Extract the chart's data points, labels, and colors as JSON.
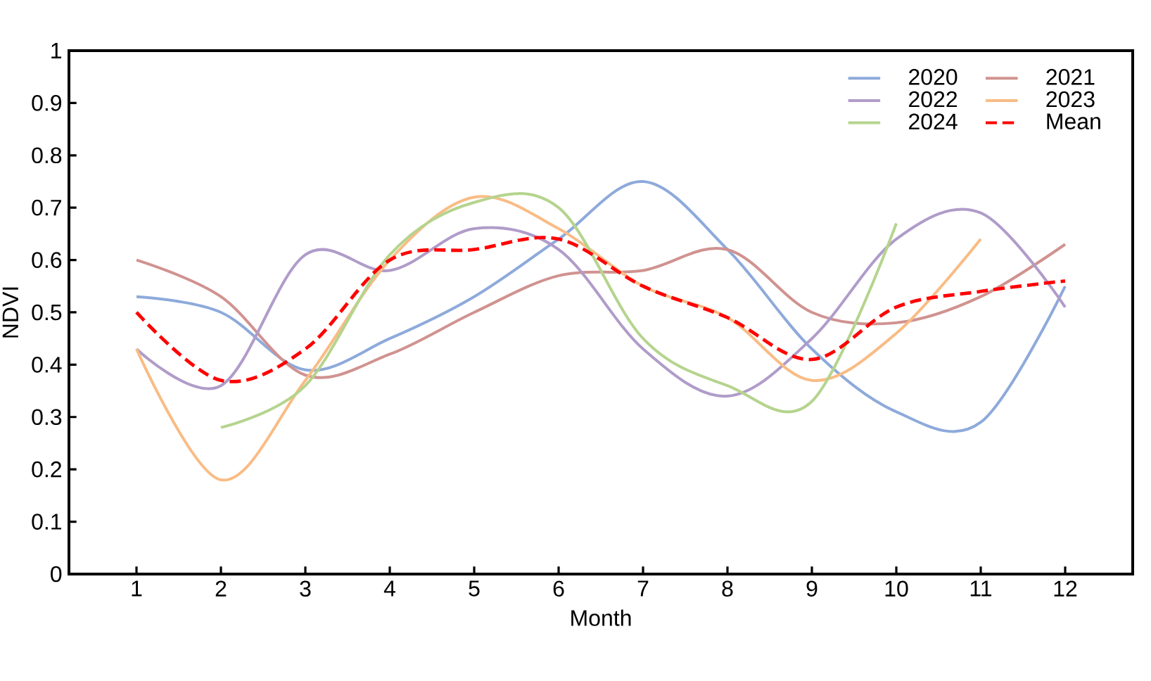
{
  "chart_data": {
    "type": "line",
    "xlabel": "Month",
    "ylabel": "NDVI",
    "x": [
      1,
      2,
      3,
      4,
      5,
      6,
      7,
      8,
      9,
      10,
      11,
      12
    ],
    "xlim": [
      0.2,
      12.8
    ],
    "xticks": [
      1,
      2,
      3,
      4,
      5,
      6,
      7,
      8,
      9,
      10,
      11,
      12
    ],
    "ylim": [
      0,
      1
    ],
    "yticks": [
      0,
      0.1,
      0.2,
      0.3,
      0.4,
      0.5,
      0.6,
      0.7,
      0.8,
      0.9,
      1
    ],
    "grid": false,
    "legend": "top right",
    "marker": "none",
    "series": [
      {
        "name": "2020",
        "color": "#8eaadb",
        "values": [
          0.53,
          0.5,
          0.39,
          0.45,
          0.53,
          0.64,
          0.75,
          0.62,
          0.43,
          0.31,
          0.29,
          0.55
        ]
      },
      {
        "name": "2021",
        "color": "#d09390",
        "values": [
          0.6,
          0.53,
          0.38,
          0.42,
          0.5,
          0.57,
          0.58,
          0.62,
          0.5,
          0.48,
          0.53,
          0.63
        ]
      },
      {
        "name": "2022",
        "color": "#b09cc9",
        "values": [
          0.43,
          0.36,
          0.61,
          0.58,
          0.66,
          0.62,
          0.43,
          0.34,
          0.45,
          0.64,
          0.69,
          0.51
        ]
      },
      {
        "name": "2023",
        "color": "#f9bc85",
        "values": [
          0.43,
          0.18,
          0.37,
          0.6,
          0.72,
          0.66,
          0.55,
          0.49,
          0.37,
          0.46,
          0.64,
          null
        ]
      },
      {
        "name": "2024",
        "color": "#b5d48e",
        "values": [
          null,
          0.28,
          0.36,
          0.61,
          0.71,
          0.7,
          0.45,
          0.36,
          0.33,
          0.67,
          null,
          null
        ]
      },
      {
        "name": "Mean",
        "color": "#ff0000",
        "line_style": "dashed",
        "values": [
          0.5,
          0.37,
          0.43,
          0.6,
          0.62,
          0.64,
          0.55,
          0.49,
          0.41,
          0.51,
          0.54,
          0.56
        ]
      }
    ]
  }
}
